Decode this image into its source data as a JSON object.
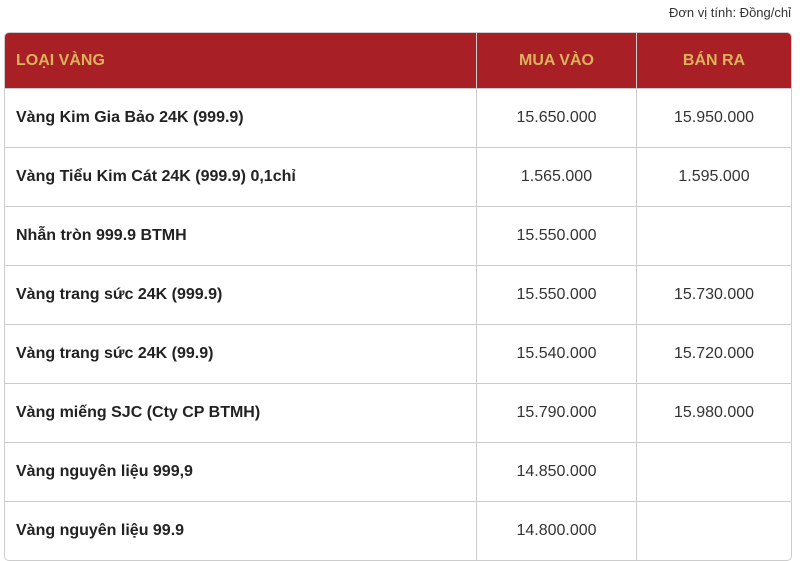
{
  "unit_label": "Đơn vị tính: Đồng/chỉ",
  "headers": [
    "LOẠI VÀNG",
    "MUA VÀO",
    "BÁN RA"
  ],
  "rows": [
    {
      "name": "Vàng Kim Gia Bảo 24K (999.9)",
      "buy": "15.650.000",
      "sell": "15.950.000"
    },
    {
      "name": "Vàng Tiểu Kim Cát 24K (999.9) 0,1chỉ",
      "buy": "1.565.000",
      "sell": "1.595.000"
    },
    {
      "name": "Nhẫn tròn 999.9 BTMH",
      "buy": "15.550.000",
      "sell": ""
    },
    {
      "name": "Vàng trang sức 24K (999.9)",
      "buy": "15.550.000",
      "sell": "15.730.000"
    },
    {
      "name": "Vàng trang sức 24K (99.9)",
      "buy": "15.540.000",
      "sell": "15.720.000"
    },
    {
      "name": "Vàng miếng SJC (Cty CP BTMH)",
      "buy": "15.790.000",
      "sell": "15.980.000"
    },
    {
      "name": "Vàng nguyên liệu 999,9",
      "buy": "14.850.000",
      "sell": ""
    },
    {
      "name": "Vàng nguyên liệu 99.9",
      "buy": "14.800.000",
      "sell": ""
    }
  ],
  "colors": {
    "header_bg": "#a81f25",
    "header_text": "#dcb25c"
  }
}
